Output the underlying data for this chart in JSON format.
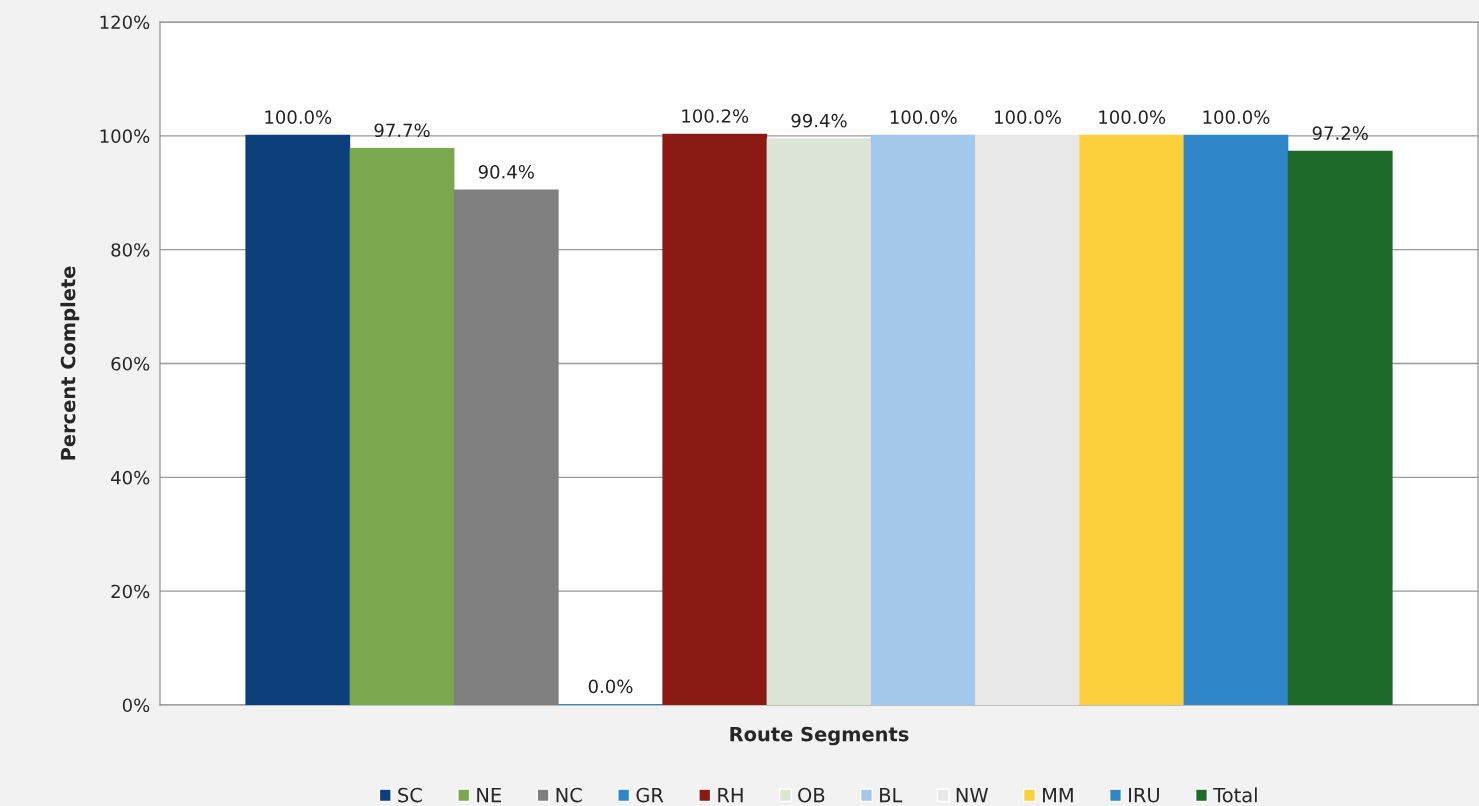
{
  "chart_data": {
    "type": "bar",
    "xlabel": "Route Segments",
    "ylabel": "Percent Complete",
    "categories": [
      null
    ],
    "series": [
      {
        "name": "SC",
        "color": "#0d3f7a",
        "values": [
          100.0
        ],
        "value_labels": [
          "100.0%"
        ]
      },
      {
        "name": "NE",
        "color": "#7ba84f",
        "values": [
          97.7
        ],
        "value_labels": [
          "97.7%"
        ]
      },
      {
        "name": "NC",
        "color": "#808080",
        "values": [
          90.4
        ],
        "value_labels": [
          "90.4%"
        ]
      },
      {
        "name": "GR",
        "color": "#2e87c8",
        "values": [
          0.0
        ],
        "value_labels": [
          "0.0%"
        ]
      },
      {
        "name": "RH",
        "color": "#8b1a14",
        "values": [
          100.2
        ],
        "value_labels": [
          "100.2%"
        ]
      },
      {
        "name": "OB",
        "color": "#dde6d6",
        "values": [
          99.4
        ],
        "value_labels": [
          "99.4%"
        ]
      },
      {
        "name": "BL",
        "color": "#a4c8ec",
        "values": [
          100.0
        ],
        "value_labels": [
          "100.0%"
        ]
      },
      {
        "name": "NW",
        "color": "#e8e8e8",
        "values": [
          100.0
        ],
        "value_labels": [
          "100.0%"
        ]
      },
      {
        "name": "MM",
        "color": "#fcd03c",
        "values": [
          100.0
        ],
        "value_labels": [
          "100.0%"
        ]
      },
      {
        "name": "IRU",
        "color": "#2f86c9",
        "values": [
          100.0
        ],
        "value_labels": [
          "100.0%"
        ]
      },
      {
        "name": "Total",
        "color": "#1e6a2a",
        "values": [
          97.2
        ],
        "value_labels": [
          "97.2%"
        ]
      }
    ],
    "ylim": [
      0,
      120
    ],
    "yticks": [
      {
        "value": 0,
        "label": "0%"
      },
      {
        "value": 20,
        "label": "20%"
      },
      {
        "value": 40,
        "label": "40%"
      },
      {
        "value": 60,
        "label": "60%"
      },
      {
        "value": 80,
        "label": "80%"
      },
      {
        "value": 100,
        "label": "100%"
      },
      {
        "value": 120,
        "label": "120%"
      }
    ],
    "grid": "y",
    "legend": "bottom"
  }
}
